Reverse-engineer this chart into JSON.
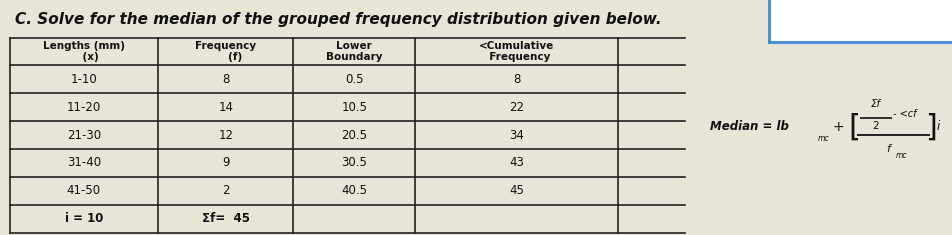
{
  "title": "C. Solve for the median of the grouped frequency distribution given below.",
  "title_fontsize": 11,
  "table_rows": [
    [
      "1-10",
      "8",
      "0.5",
      "8"
    ],
    [
      "11-20",
      "14",
      "10.5",
      "22"
    ],
    [
      "21-30",
      "12",
      "20.5",
      "34"
    ],
    [
      "31-40",
      "9",
      "30.5",
      "43"
    ],
    [
      "41-50",
      "2",
      "40.5",
      "45"
    ]
  ],
  "table_footer": [
    "i = 10",
    "Σf=  45",
    "",
    ""
  ],
  "bg_color": "#e8e4d8",
  "table_border_color": "#222222",
  "text_color": "#111111",
  "box_color": "#4a90d9",
  "figsize": [
    9.52,
    2.35
  ],
  "dpi": 100
}
